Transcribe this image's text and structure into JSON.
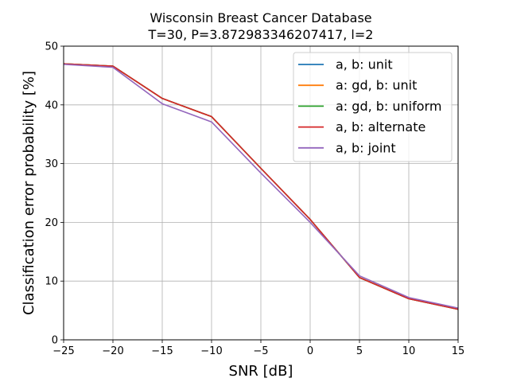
{
  "chart_data": {
    "type": "line",
    "title": "Wisconsin Breast Cancer Database",
    "subtitle": "T=30, P=3.872983346207417, l=2",
    "xlabel": "SNR [dB]",
    "ylabel": "Classification error probability [%]",
    "xlim": [
      -25,
      15
    ],
    "ylim": [
      0,
      50
    ],
    "xticks": [
      -25,
      -20,
      -15,
      -10,
      -5,
      0,
      5,
      10,
      15
    ],
    "xtick_labels": [
      "−25",
      "−20",
      "−15",
      "−10",
      "−5",
      "0",
      "5",
      "10",
      "15"
    ],
    "yticks": [
      0,
      10,
      20,
      30,
      40,
      50
    ],
    "ytick_labels": [
      "0",
      "10",
      "20",
      "30",
      "40",
      "50"
    ],
    "grid": true,
    "legend_position": "top-right",
    "x": [
      -25,
      -20,
      -15,
      -10,
      -5,
      0,
      5,
      10,
      15
    ],
    "series": [
      {
        "name": "a, b: unit",
        "color": "#1f77b4",
        "values": [
          47.0,
          46.6,
          41.1,
          38.0,
          29.2,
          20.5,
          10.6,
          7.0,
          5.2
        ]
      },
      {
        "name": "a: gd, b: unit",
        "color": "#ff7f0e",
        "values": [
          47.0,
          46.6,
          41.1,
          38.0,
          29.2,
          20.5,
          10.6,
          7.0,
          5.2
        ]
      },
      {
        "name": "a: gd, b: uniform",
        "color": "#2ca02c",
        "values": [
          47.0,
          46.6,
          41.1,
          38.0,
          29.2,
          20.5,
          10.6,
          7.0,
          5.2
        ]
      },
      {
        "name": "a, b: alternate",
        "color": "#d62728",
        "values": [
          47.0,
          46.6,
          41.1,
          38.0,
          29.2,
          20.5,
          10.6,
          7.0,
          5.2
        ]
      },
      {
        "name": "a, b: joint",
        "color": "#9467bd",
        "values": [
          46.9,
          46.4,
          40.2,
          37.1,
          28.4,
          20.0,
          10.9,
          7.2,
          5.4
        ]
      }
    ]
  }
}
